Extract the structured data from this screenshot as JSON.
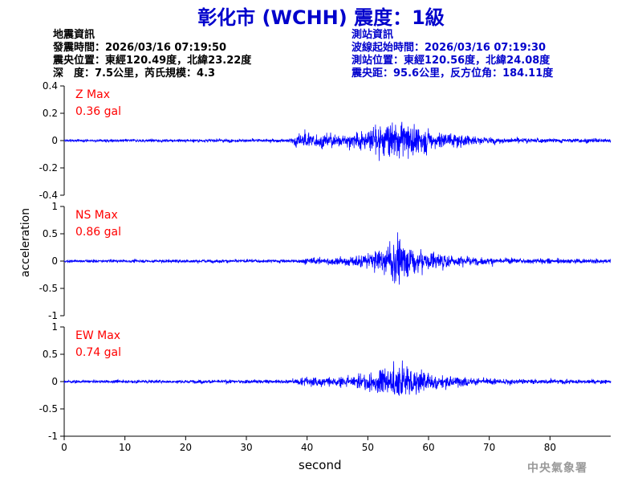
{
  "title": "彰化市 (WCHH) 震度：1級",
  "earthquake_info": {
    "heading": "地震資訊",
    "time": "發震時間：2026/03/16 07:19:50",
    "epicenter": "震央位置：東經120.49度，北緯23.22度",
    "depth_magnitude": "深　度：7.5公里，芮氏規模：4.3"
  },
  "station_info": {
    "heading": "測站資訊",
    "wave_start": "波線起始時間：2026/03/16 07:19:30",
    "location": "測站位置：東經120.56度，北緯24.08度",
    "distance": "震央距：95.6公里，反方位角：184.11度"
  },
  "footer": {
    "agency": "中央氣象署"
  },
  "chart_data": {
    "type": "line",
    "xlabel": "second",
    "ylabel": "acceleration",
    "xlim": [
      0,
      90
    ],
    "x_ticks": [
      0,
      10,
      20,
      30,
      40,
      50,
      60,
      70,
      80
    ],
    "color": "#0000ff",
    "annotation_color": "#ff0000",
    "panels": [
      {
        "name": "Z",
        "max_label": "Z Max",
        "max_value": "0.36 gal",
        "ylim": [
          -0.4,
          0.4
        ],
        "y_ticks": [
          0.4,
          0.2,
          0,
          -0.2,
          -0.4
        ],
        "y_tick_labels": [
          "0.4",
          "0.2",
          "0",
          "-0.2",
          "-0.4"
        ],
        "noise": 0.012,
        "envelope": [
          [
            0,
            0.015
          ],
          [
            37,
            0.02
          ],
          [
            39,
            0.12
          ],
          [
            42,
            0.09
          ],
          [
            45,
            0.08
          ],
          [
            48,
            0.1
          ],
          [
            52,
            0.17
          ],
          [
            55,
            0.24
          ],
          [
            57,
            0.22
          ],
          [
            60,
            0.15
          ],
          [
            63,
            0.1
          ],
          [
            66,
            0.07
          ],
          [
            70,
            0.04
          ],
          [
            75,
            0.03
          ],
          [
            89,
            0.025
          ]
        ]
      },
      {
        "name": "NS",
        "max_label": "NS Max",
        "max_value": "0.86 gal",
        "ylim": [
          -1,
          1
        ],
        "y_ticks": [
          1,
          0.5,
          0,
          -0.5,
          -1
        ],
        "y_tick_labels": [
          "1",
          "0.5",
          "0",
          "-0.5",
          "-1"
        ],
        "noise": 0.03,
        "envelope": [
          [
            0,
            0.04
          ],
          [
            38,
            0.05
          ],
          [
            40,
            0.1
          ],
          [
            44,
            0.12
          ],
          [
            48,
            0.18
          ],
          [
            52,
            0.32
          ],
          [
            55,
            0.72
          ],
          [
            56,
            0.6
          ],
          [
            58,
            0.4
          ],
          [
            62,
            0.22
          ],
          [
            66,
            0.14
          ],
          [
            70,
            0.1
          ],
          [
            76,
            0.08
          ],
          [
            89,
            0.07
          ]
        ]
      },
      {
        "name": "EW",
        "max_label": "EW Max",
        "max_value": "0.74 gal",
        "ylim": [
          -1,
          1
        ],
        "y_ticks": [
          1,
          0.5,
          0,
          -0.5,
          -1
        ],
        "y_tick_labels": [
          "1",
          "0.5",
          "0",
          "-0.5",
          "-1"
        ],
        "noise": 0.03,
        "envelope": [
          [
            0,
            0.04
          ],
          [
            38,
            0.06
          ],
          [
            40,
            0.2
          ],
          [
            44,
            0.14
          ],
          [
            48,
            0.18
          ],
          [
            52,
            0.38
          ],
          [
            55,
            0.55
          ],
          [
            57,
            0.5
          ],
          [
            60,
            0.32
          ],
          [
            64,
            0.18
          ],
          [
            68,
            0.11
          ],
          [
            75,
            0.08
          ],
          [
            89,
            0.06
          ]
        ]
      }
    ]
  }
}
